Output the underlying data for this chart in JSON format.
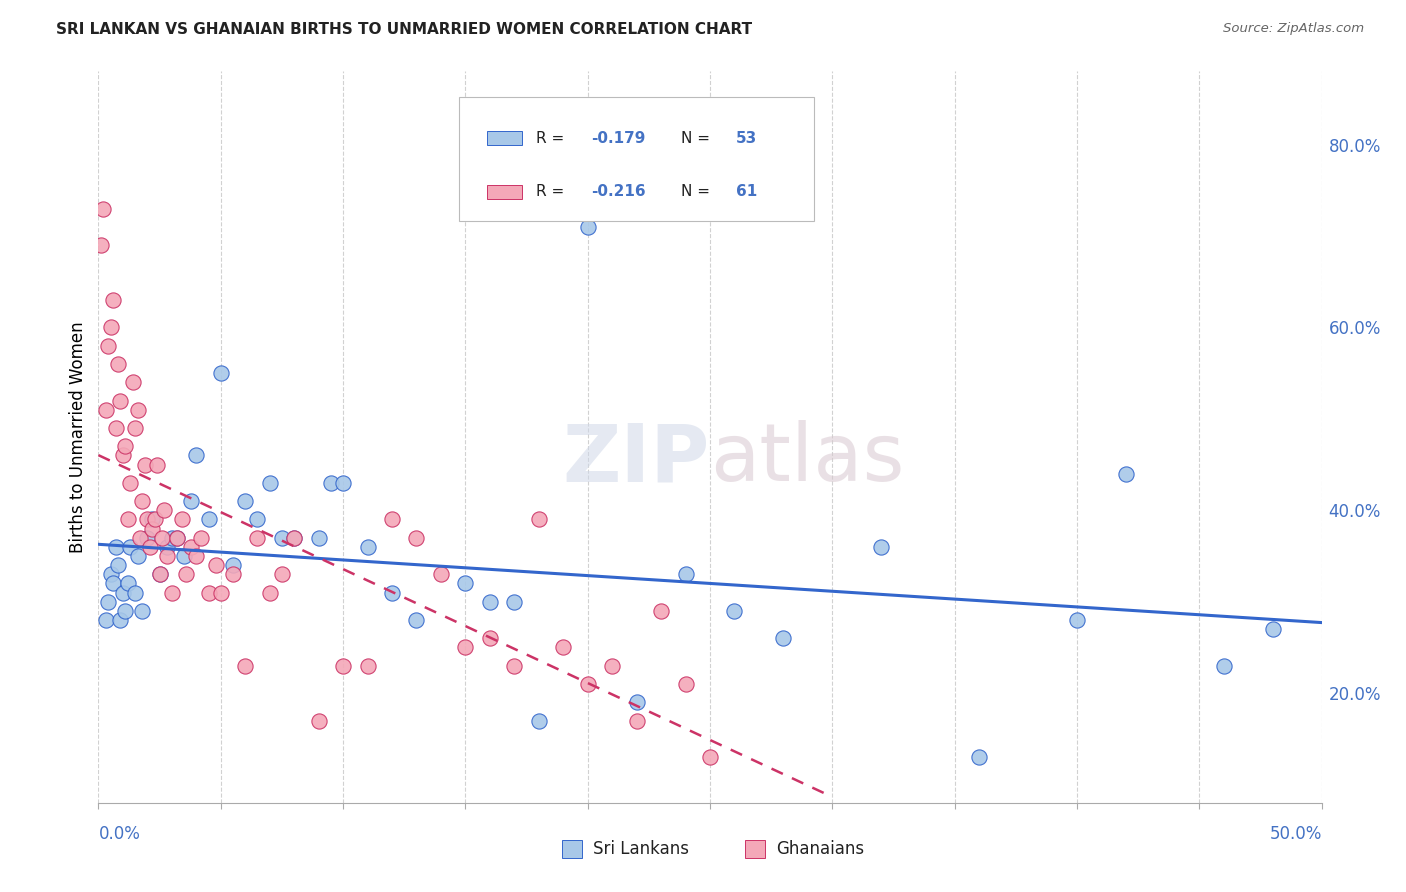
{
  "title": "SRI LANKAN VS GHANAIAN BIRTHS TO UNMARRIED WOMEN CORRELATION CHART",
  "source": "Source: ZipAtlas.com",
  "ylabel": "Births to Unmarried Women",
  "right_yticks": [
    "20.0%",
    "40.0%",
    "60.0%",
    "80.0%"
  ],
  "right_ytick_vals": [
    20.0,
    40.0,
    60.0,
    80.0
  ],
  "x_range": [
    0.0,
    50.0
  ],
  "y_range": [
    8.0,
    88.0
  ],
  "legend_label1": "Sri Lankans",
  "legend_label2": "Ghanaians",
  "color_blue": "#a8c8e8",
  "color_pink": "#f4a8b8",
  "color_blue_line": "#3366cc",
  "color_pink_line": "#cc3366",
  "watermark": "ZIPatlas",
  "sri_lankan_x": [
    0.3,
    0.4,
    0.5,
    0.6,
    0.7,
    0.8,
    0.9,
    1.0,
    1.1,
    1.2,
    1.3,
    1.5,
    1.6,
    1.8,
    2.0,
    2.2,
    2.5,
    2.8,
    3.0,
    3.2,
    3.5,
    3.8,
    4.0,
    4.5,
    5.0,
    5.5,
    6.0,
    6.5,
    7.0,
    7.5,
    8.0,
    9.0,
    9.5,
    10.0,
    11.0,
    12.0,
    13.0,
    15.0,
    16.0,
    17.0,
    18.0,
    20.0,
    22.0,
    24.0,
    26.0,
    28.0,
    32.0,
    36.0,
    40.0,
    42.0,
    46.0,
    48.0
  ],
  "sri_lankan_y": [
    28.0,
    30.0,
    33.0,
    32.0,
    36.0,
    34.0,
    28.0,
    31.0,
    29.0,
    32.0,
    36.0,
    31.0,
    35.0,
    29.0,
    37.0,
    39.0,
    33.0,
    36.0,
    37.0,
    37.0,
    35.0,
    41.0,
    46.0,
    39.0,
    55.0,
    34.0,
    41.0,
    39.0,
    43.0,
    37.0,
    37.0,
    37.0,
    43.0,
    43.0,
    36.0,
    31.0,
    28.0,
    32.0,
    30.0,
    30.0,
    17.0,
    71.0,
    19.0,
    33.0,
    29.0,
    26.0,
    36.0,
    13.0,
    28.0,
    44.0,
    23.0,
    27.0
  ],
  "ghanaian_x": [
    0.1,
    0.2,
    0.3,
    0.4,
    0.5,
    0.6,
    0.7,
    0.8,
    0.9,
    1.0,
    1.1,
    1.2,
    1.3,
    1.4,
    1.5,
    1.6,
    1.7,
    1.8,
    1.9,
    2.0,
    2.1,
    2.2,
    2.3,
    2.4,
    2.5,
    2.6,
    2.7,
    2.8,
    3.0,
    3.2,
    3.4,
    3.6,
    3.8,
    4.0,
    4.2,
    4.5,
    4.8,
    5.0,
    5.5,
    6.0,
    6.5,
    7.0,
    7.5,
    8.0,
    9.0,
    10.0,
    11.0,
    12.0,
    13.0,
    14.0,
    15.0,
    16.0,
    17.0,
    18.0,
    19.0,
    20.0,
    21.0,
    22.0,
    23.0,
    24.0,
    25.0
  ],
  "ghanaian_y": [
    69.0,
    73.0,
    51.0,
    58.0,
    60.0,
    63.0,
    49.0,
    56.0,
    52.0,
    46.0,
    47.0,
    39.0,
    43.0,
    54.0,
    49.0,
    51.0,
    37.0,
    41.0,
    45.0,
    39.0,
    36.0,
    38.0,
    39.0,
    45.0,
    33.0,
    37.0,
    40.0,
    35.0,
    31.0,
    37.0,
    39.0,
    33.0,
    36.0,
    35.0,
    37.0,
    31.0,
    34.0,
    31.0,
    33.0,
    23.0,
    37.0,
    31.0,
    33.0,
    37.0,
    17.0,
    23.0,
    23.0,
    39.0,
    37.0,
    33.0,
    25.0,
    26.0,
    23.0,
    39.0,
    25.0,
    21.0,
    23.0,
    17.0,
    29.0,
    21.0,
    13.0
  ]
}
